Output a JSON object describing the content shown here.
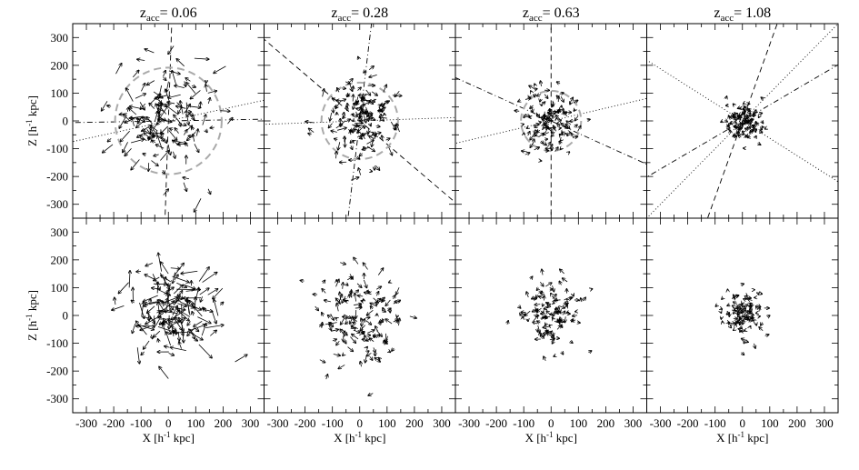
{
  "chart_data": {
    "type": "scatter",
    "description_free": true,
    "title_prefix": "z",
    "title_subscript": "acc",
    "titles": [
      "= 0.06",
      "= 0.28",
      "= 0.63",
      "= 1.08"
    ],
    "xlabel_main": "X [h",
    "xlabel_sup": "-1",
    "xlabel_end": " kpc]",
    "ylabel_main": "Z [h",
    "ylabel_sup": "-1",
    "ylabel_end": " kpc]",
    "xlim": [
      -350,
      350
    ],
    "ylim": [
      -350,
      350
    ],
    "xticks": [
      -300,
      -200,
      -100,
      0,
      100,
      200,
      300
    ],
    "yticks": [
      -300,
      -200,
      -100,
      0,
      100,
      200,
      300
    ],
    "panels": [
      {
        "row": 0,
        "col": 0,
        "spread": 165,
        "n": 150,
        "seed": 11,
        "len": 32,
        "circle_radius": 195,
        "lines": [
          {
            "angle": 12,
            "style": "dot"
          },
          {
            "angle": 1,
            "style": "dashdot"
          },
          {
            "angle": 88,
            "style": "dash"
          }
        ]
      },
      {
        "row": 0,
        "col": 1,
        "spread": 120,
        "n": 150,
        "seed": 23,
        "len": 20,
        "circle_radius": 140,
        "lines": [
          {
            "angle": 2,
            "style": "dot"
          },
          {
            "angle": -40,
            "style": "dash"
          },
          {
            "angle": 83,
            "style": "dashdot"
          }
        ]
      },
      {
        "row": 0,
        "col": 2,
        "spread": 100,
        "n": 130,
        "seed": 37,
        "len": 14,
        "circle_radius": 110,
        "lines": [
          {
            "angle": 13,
            "style": "dot"
          },
          {
            "angle": -24,
            "style": "dashdot"
          },
          {
            "angle": 90,
            "style": "dash"
          }
        ]
      },
      {
        "row": 0,
        "col": 3,
        "spread": 65,
        "n": 110,
        "seed": 51,
        "len": 10,
        "circle_radius": 0,
        "lines": [
          {
            "angle": 45,
            "style": "dot"
          },
          {
            "angle": -32,
            "style": "dot"
          },
          {
            "angle": 30,
            "style": "dashdot"
          },
          {
            "angle": 70,
            "style": "dash"
          }
        ]
      },
      {
        "row": 1,
        "col": 0,
        "spread": 130,
        "n": 160,
        "seed": 67,
        "len": 40,
        "circle_radius": 0,
        "lines": []
      },
      {
        "row": 1,
        "col": 1,
        "spread": 150,
        "n": 150,
        "seed": 79,
        "len": 18,
        "circle_radius": 0,
        "lines": []
      },
      {
        "row": 1,
        "col": 2,
        "spread": 105,
        "n": 120,
        "seed": 83,
        "len": 16,
        "circle_radius": 0,
        "lines": []
      },
      {
        "row": 1,
        "col": 3,
        "spread": 75,
        "n": 110,
        "seed": 97,
        "len": 11,
        "circle_radius": 0,
        "lines": []
      }
    ]
  }
}
